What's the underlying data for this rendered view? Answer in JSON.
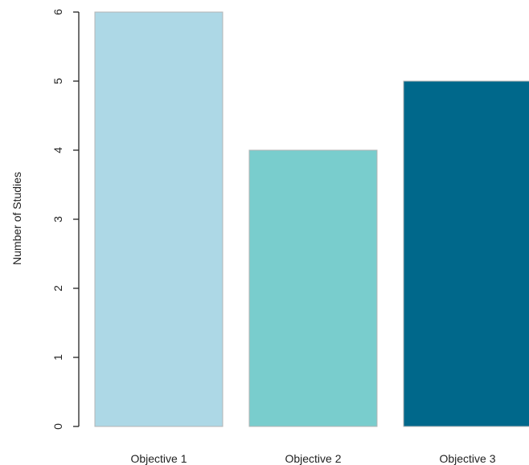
{
  "chart_data": {
    "type": "bar",
    "categories": [
      "Objective 1",
      "Objective 2",
      "Objective 3"
    ],
    "values": [
      6,
      4,
      5
    ],
    "colors": [
      "#add8e6",
      "#79cdcd",
      "#00688b"
    ],
    "bar_border_color": "#b4b4b4",
    "title": "",
    "xlabel": "",
    "ylabel": "Number of Studies",
    "ylim": [
      0,
      6
    ],
    "yticks": [
      0,
      1,
      2,
      3,
      4,
      5,
      6
    ],
    "ytick_labels": [
      "0",
      "1",
      "2",
      "3",
      "4",
      "5",
      "6"
    ],
    "grid": false,
    "legend": "none"
  }
}
